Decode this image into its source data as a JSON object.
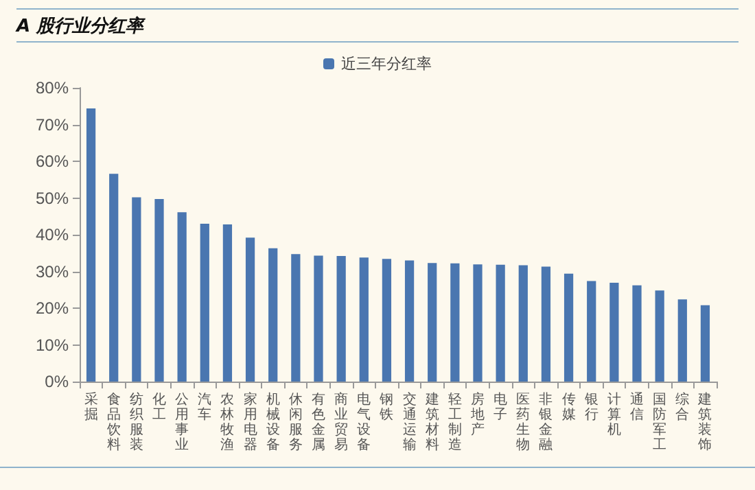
{
  "chart_data": {
    "type": "bar",
    "title": "A 股行业分红率",
    "categories": [
      "采掘",
      "食品饮料",
      "纺织服装",
      "化工",
      "公用事业",
      "汽车",
      "农林牧渔",
      "家用电器",
      "机械设备",
      "休闲服务",
      "有色金属",
      "商业贸易",
      "电气设备",
      "钢铁",
      "交通运输",
      "建筑材料",
      "轻工制造",
      "房地产",
      "电子",
      "医药生物",
      "非银金融",
      "传媒",
      "银行",
      "计算机",
      "通信",
      "国防军工",
      "综合",
      "建筑装饰"
    ],
    "series": [
      {
        "name": "近三年分红率",
        "color": "#4a76b0",
        "values": [
          74.4,
          56.6,
          50.2,
          49.7,
          46.1,
          43.0,
          42.8,
          39.2,
          36.3,
          34.7,
          34.3,
          34.2,
          33.8,
          33.4,
          33.0,
          32.3,
          32.2,
          31.9,
          31.8,
          31.7,
          31.3,
          29.4,
          27.4,
          26.9,
          26.2,
          24.8,
          22.4,
          20.8
        ]
      }
    ],
    "ylim": [
      0,
      80
    ],
    "yticks": [
      {
        "value": 0,
        "label": "0%"
      },
      {
        "value": 10,
        "label": "10%"
      },
      {
        "value": 20,
        "label": "20%"
      },
      {
        "value": 30,
        "label": "30%"
      },
      {
        "value": 40,
        "label": "40%"
      },
      {
        "value": 50,
        "label": "50%"
      },
      {
        "value": 60,
        "label": "60%"
      },
      {
        "value": 70,
        "label": "70%"
      },
      {
        "value": 80,
        "label": "80%"
      }
    ],
    "grid": false,
    "legend": "top"
  }
}
